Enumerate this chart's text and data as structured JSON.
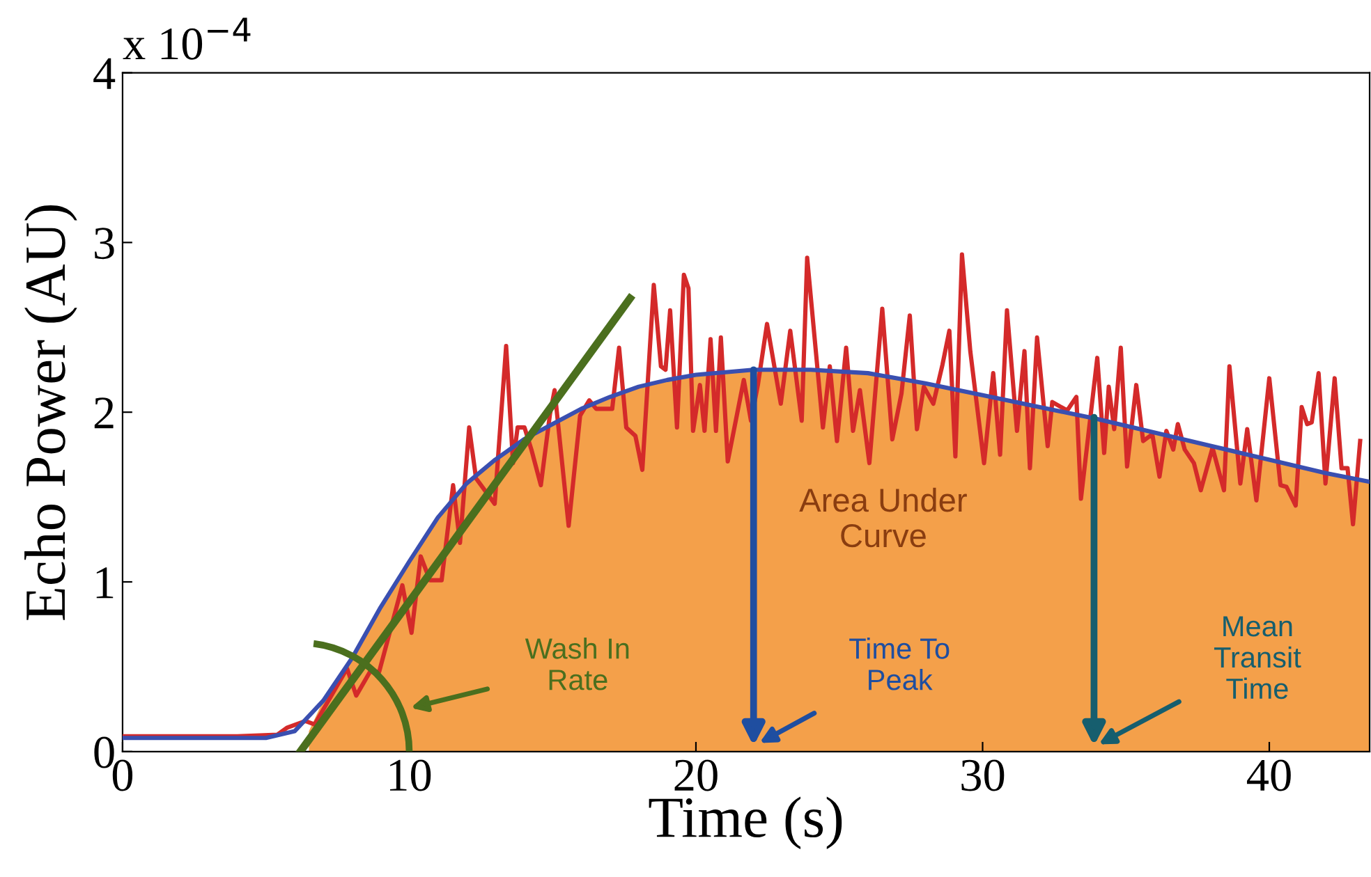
{
  "chart_data": {
    "type": "line",
    "xlabel": "Time (s)",
    "ylabel": "Echo Power (AU)",
    "xlim": [
      0,
      43.5
    ],
    "ylim": [
      0,
      4
    ],
    "xticks": [
      0,
      10,
      20,
      30,
      40
    ],
    "yticks": [
      0,
      1,
      2,
      3,
      4
    ],
    "grid": false,
    "legend": false,
    "marker": "none",
    "line_style": "solid",
    "series": [
      {
        "type": "area",
        "color": "#f4a04a",
        "x": [
          6.5,
          7,
          8,
          9,
          10,
          11,
          12,
          13,
          14,
          15,
          16,
          17,
          18,
          19,
          20,
          22,
          24,
          26,
          28,
          30,
          32,
          34,
          36,
          38,
          40,
          42,
          43.5
        ],
        "values": [
          0.12,
          0.3,
          0.55,
          0.85,
          1.12,
          1.38,
          1.58,
          1.72,
          1.84,
          1.93,
          2.02,
          2.09,
          2.15,
          2.19,
          2.22,
          2.25,
          2.25,
          2.23,
          2.17,
          2.1,
          2.03,
          1.96,
          1.88,
          1.8,
          1.72,
          1.64,
          1.59
        ]
      },
      {
        "color": "#d42a2a",
        "x": [
          0,
          2,
          4,
          5.4,
          5.73,
          6.38,
          6.7,
          7.18,
          7.83,
          8.15,
          8.63,
          8.95,
          9.76,
          10.08,
          10.4,
          10.72,
          11.13,
          11.53,
          11.77,
          12.09,
          12.33,
          12.98,
          13.38,
          13.62,
          13.78,
          14.02,
          14.26,
          14.59,
          14.91,
          15.07,
          15.56,
          15.96,
          16.28,
          16.52,
          17.08,
          17.32,
          17.57,
          17.89,
          18.13,
          18.53,
          18.78,
          18.94,
          19.1,
          19.34,
          19.58,
          19.74,
          19.9,
          20.14,
          20.3,
          20.51,
          20.7,
          20.87,
          21.11,
          21.67,
          21.92,
          22.16,
          22.48,
          22.96,
          23.29,
          23.69,
          23.88,
          24.43,
          24.67,
          24.92,
          25.24,
          25.48,
          25.72,
          26.05,
          26.5,
          26.85,
          27.17,
          27.46,
          27.71,
          27.95,
          28.28,
          28.6,
          28.84,
          29.05,
          29.28,
          29.57,
          30.05,
          30.37,
          30.61,
          30.85,
          31.2,
          31.46,
          31.65,
          31.9,
          32.27,
          32.43,
          32.95,
          33.27,
          33.43,
          34.0,
          34.24,
          34.4,
          34.59,
          34.82,
          35.04,
          35.36,
          35.6,
          35.92,
          36.17,
          36.41,
          36.65,
          36.81,
          37.05,
          37.37,
          37.61,
          38.02,
          38.42,
          38.61,
          38.99,
          39.23,
          39.55,
          40.0,
          40.39,
          40.6,
          40.92,
          41.13,
          41.32,
          41.48,
          41.72,
          41.96,
          42.28,
          42.52,
          42.73,
          42.92,
          43.17
        ],
        "values": [
          0.09,
          0.09,
          0.09,
          0.1,
          0.14,
          0.18,
          0.16,
          0.3,
          0.49,
          0.33,
          0.47,
          0.47,
          0.98,
          0.7,
          1.15,
          1.01,
          1.01,
          1.57,
          1.23,
          1.91,
          1.61,
          1.46,
          2.39,
          1.7,
          1.91,
          1.91,
          1.78,
          1.57,
          1.99,
          2.13,
          1.33,
          1.98,
          2.07,
          2.02,
          2.02,
          2.38,
          1.91,
          1.86,
          1.66,
          2.75,
          2.27,
          2.25,
          2.6,
          1.91,
          2.81,
          2.73,
          1.89,
          2.16,
          1.89,
          2.43,
          1.89,
          2.44,
          1.71,
          2.19,
          1.95,
          2.16,
          2.52,
          2.05,
          2.48,
          1.95,
          2.91,
          1.91,
          2.27,
          1.83,
          2.38,
          1.89,
          2.13,
          1.7,
          2.61,
          1.84,
          2.11,
          2.57,
          1.9,
          2.15,
          2.05,
          2.28,
          2.48,
          1.74,
          2.93,
          2.36,
          1.7,
          2.23,
          1.75,
          2.6,
          1.89,
          2.36,
          1.67,
          2.44,
          1.8,
          2.06,
          2.01,
          2.09,
          1.49,
          2.32,
          1.76,
          2.15,
          1.9,
          2.38,
          1.68,
          2.16,
          1.83,
          1.87,
          1.62,
          1.89,
          1.78,
          1.93,
          1.78,
          1.7,
          1.54,
          1.79,
          1.54,
          2.27,
          1.58,
          1.9,
          1.48,
          2.2,
          1.57,
          1.56,
          1.45,
          2.03,
          1.93,
          1.94,
          2.23,
          1.58,
          2.2,
          1.67,
          1.67,
          1.34,
          1.83
        ]
      },
      {
        "color": "#3a4fb0",
        "x": [
          0,
          5,
          6,
          7,
          8,
          9,
          10,
          11,
          12,
          13,
          14,
          15,
          16,
          17,
          18,
          19,
          20,
          22,
          24,
          26,
          28,
          30,
          32,
          34,
          36,
          38,
          40,
          42,
          43.5
        ],
        "values": [
          0.08,
          0.08,
          0.12,
          0.3,
          0.55,
          0.85,
          1.12,
          1.38,
          1.58,
          1.72,
          1.84,
          1.93,
          2.02,
          2.09,
          2.15,
          2.19,
          2.22,
          2.25,
          2.25,
          2.23,
          2.17,
          2.1,
          2.03,
          1.96,
          1.88,
          1.8,
          1.72,
          1.64,
          1.59
        ]
      },
      {
        "color": "#4b6f1e",
        "x": [
          6.2,
          17.7
        ],
        "values": [
          0,
          2.67
        ]
      }
    ],
    "annotations": [
      "x 10$^{−4}$",
      "Area Under\nCurve",
      "Wash In\nRate",
      "Time To\nPeak",
      "Mean\nTransit\nTime"
    ]
  }
}
